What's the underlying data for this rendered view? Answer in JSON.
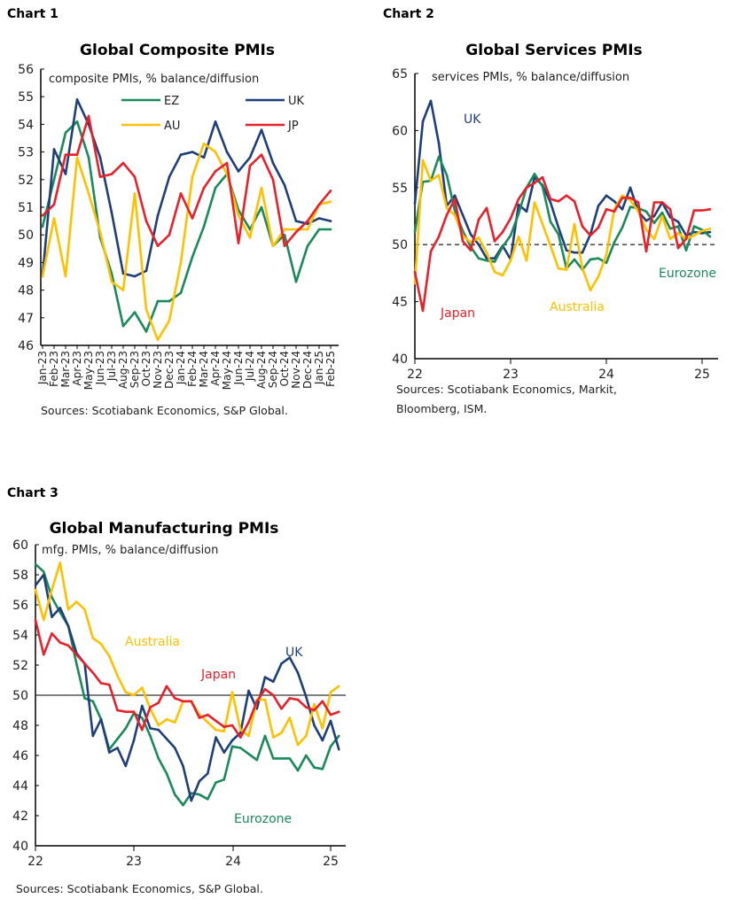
{
  "colors": {
    "EZ": "#1a8a5a",
    "UK": "#1f3f7a",
    "AU": "#ffc000",
    "JP": "#e8202a",
    "ref": "#333333"
  },
  "chart_data": [
    {
      "id": "chart1",
      "chart_label": "Chart 1",
      "type": "line",
      "title": "Global Composite PMIs",
      "subtitle": "composite PMIs, % balance/diffusion",
      "source": "Sources: Scotiabank Economics, S&P Global.",
      "ylim": [
        46,
        56
      ],
      "yticks": [
        46,
        47,
        48,
        49,
        50,
        51,
        52,
        53,
        54,
        55,
        56
      ],
      "categories": [
        "Jan-23",
        "Feb-23",
        "Mar-23",
        "Apr-23",
        "May-23",
        "Jun-23",
        "Jul-23",
        "Aug-23",
        "Sep-23",
        "Oct-23",
        "Nov-23",
        "Dec-23",
        "Jan-24",
        "Feb-24",
        "Mar-24",
        "Apr-24",
        "May-24",
        "Jun-24",
        "Jul-24",
        "Aug-24",
        "Sep-24",
        "Oct-24",
        "Nov-24",
        "Dec-24",
        "Jan-25",
        "Feb-25"
      ],
      "legend": "top-right, inside",
      "series": [
        {
          "key": "EZ",
          "name": "EZ",
          "values": [
            50.3,
            52.0,
            53.7,
            54.1,
            52.8,
            49.9,
            48.6,
            46.7,
            47.2,
            46.5,
            47.6,
            47.6,
            47.9,
            49.2,
            50.3,
            51.7,
            52.2,
            50.9,
            50.2,
            51.0,
            49.6,
            50.0,
            48.3,
            49.6,
            50.2,
            50.2
          ]
        },
        {
          "key": "UK",
          "name": "UK",
          "values": [
            48.5,
            53.1,
            52.2,
            54.9,
            54.0,
            52.8,
            50.8,
            48.6,
            48.5,
            48.7,
            50.7,
            52.1,
            52.9,
            53.0,
            52.8,
            54.1,
            53.0,
            52.3,
            52.8,
            53.8,
            52.6,
            51.8,
            50.5,
            50.4,
            50.6,
            50.5
          ]
        },
        {
          "key": "AU",
          "name": "AU",
          "values": [
            48.5,
            50.6,
            48.5,
            52.8,
            51.5,
            50.1,
            48.3,
            48.0,
            51.5,
            47.3,
            46.2,
            46.9,
            49.0,
            52.1,
            53.3,
            53.0,
            52.2,
            50.7,
            49.9,
            51.7,
            49.6,
            50.2,
            50.2,
            50.2,
            51.1,
            51.2
          ]
        },
        {
          "key": "JP",
          "name": "JP",
          "values": [
            50.7,
            51.1,
            52.9,
            52.9,
            54.3,
            52.1,
            52.2,
            52.6,
            52.1,
            50.5,
            49.6,
            50.0,
            51.5,
            50.6,
            51.7,
            52.3,
            52.6,
            49.7,
            52.5,
            52.9,
            52.0,
            49.6,
            50.1,
            50.5,
            51.1,
            51.6
          ]
        }
      ]
    },
    {
      "id": "chart2",
      "chart_label": "Chart 2",
      "type": "line",
      "title": "Global Services PMIs",
      "subtitle": "services PMIs, % balance/diffusion",
      "source_lines": [
        "Sources: Scotiabank Economics, Markit,",
        "Bloomberg, ISM."
      ],
      "ylim": [
        40,
        65
      ],
      "yticks": [
        40,
        45,
        50,
        55,
        60,
        65
      ],
      "xticks": [
        "22",
        "23",
        "24",
        "25"
      ],
      "x_range": "Jan-22 to Feb-25, monthly",
      "reference_line": 50,
      "series": [
        {
          "key": "UK",
          "name": "UK",
          "values": [
            53.6,
            60.8,
            62.6,
            58.9,
            53.4,
            54.3,
            52.6,
            50.9,
            50.0,
            48.8,
            48.8,
            49.9,
            48.7,
            53.5,
            52.9,
            55.9,
            55.2,
            53.7,
            51.5,
            49.5,
            49.3,
            49.3,
            50.9,
            53.4,
            54.3,
            53.8,
            53.1,
            55.0,
            52.9,
            52.1,
            52.5,
            53.7,
            52.4,
            52.0,
            50.8,
            51.1,
            51.0,
            51.1
          ]
        },
        {
          "key": "EZ",
          "name": "Eurozone",
          "values": [
            51.1,
            55.5,
            55.6,
            57.7,
            56.1,
            53.0,
            51.2,
            49.8,
            48.8,
            48.6,
            48.5,
            49.8,
            50.8,
            52.7,
            55.0,
            56.2,
            55.1,
            52.0,
            50.9,
            47.9,
            48.7,
            47.8,
            48.7,
            48.8,
            48.4,
            50.2,
            51.5,
            53.3,
            53.2,
            52.9,
            51.9,
            52.8,
            51.4,
            51.6,
            49.5,
            51.6,
            51.3,
            50.7
          ]
        },
        {
          "key": "AU",
          "name": "Australia",
          "values": [
            46.6,
            57.4,
            55.6,
            56.1,
            53.2,
            52.6,
            50.8,
            50.2,
            50.6,
            49.3,
            47.6,
            47.3,
            48.6,
            50.7,
            48.6,
            53.7,
            51.8,
            49.9,
            47.9,
            47.8,
            51.8,
            47.9,
            46.0,
            47.2,
            49.1,
            53.1,
            54.3,
            53.9,
            52.9,
            51.3,
            50.5,
            52.5,
            50.5,
            51.0,
            50.5,
            50.8,
            51.2,
            51.4
          ]
        },
        {
          "key": "JP",
          "name": "Japan",
          "values": [
            47.6,
            44.2,
            49.4,
            50.7,
            52.6,
            54.0,
            50.3,
            49.5,
            52.2,
            53.2,
            50.3,
            51.1,
            52.3,
            54.0,
            55.0,
            55.4,
            55.9,
            54.0,
            53.8,
            54.3,
            53.8,
            51.6,
            50.8,
            51.5,
            53.1,
            52.9,
            54.1,
            54.1,
            53.7,
            49.4,
            53.7,
            53.7,
            53.1,
            49.7,
            50.5,
            53.0,
            53.0,
            53.1
          ]
        }
      ]
    },
    {
      "id": "chart3",
      "chart_label": "Chart 3",
      "type": "line",
      "title": "Global Manufacturing PMIs",
      "subtitle": "mfg. PMIs, % balance/diffusion",
      "source": "Sources: Scotiabank Economics, S&P Global.",
      "ylim": [
        40,
        60
      ],
      "yticks": [
        40,
        42,
        44,
        46,
        48,
        50,
        52,
        54,
        56,
        58,
        60
      ],
      "xticks": [
        "22",
        "23",
        "24",
        "25"
      ],
      "x_range": "Jan-22 to Feb-25, monthly",
      "reference_line": 50,
      "series": [
        {
          "key": "EZ",
          "name": "Eurozone",
          "values": [
            58.7,
            58.2,
            56.5,
            55.5,
            54.6,
            52.1,
            49.8,
            49.6,
            48.4,
            46.4,
            47.1,
            47.8,
            48.8,
            48.5,
            47.3,
            45.8,
            44.8,
            43.4,
            42.7,
            43.5,
            43.4,
            43.1,
            44.2,
            44.4,
            46.6,
            46.5,
            46.1,
            45.7,
            47.3,
            45.8,
            45.8,
            45.8,
            45.0,
            46.0,
            45.2,
            45.1,
            46.6,
            47.3
          ]
        },
        {
          "key": "UK",
          "name": "UK",
          "values": [
            57.3,
            58.0,
            55.2,
            55.8,
            54.6,
            52.8,
            52.1,
            47.3,
            48.4,
            46.2,
            46.5,
            45.3,
            47.0,
            49.3,
            47.8,
            47.7,
            47.1,
            46.5,
            45.3,
            43.0,
            44.3,
            44.8,
            47.2,
            46.2,
            47.0,
            47.5,
            50.3,
            49.1,
            51.2,
            50.9,
            52.1,
            52.5,
            51.5,
            49.9,
            48.0,
            47.0,
            48.3,
            46.4
          ]
        },
        {
          "key": "AU",
          "name": "Australia",
          "values": [
            57.0,
            55.0,
            57.0,
            58.8,
            55.7,
            56.2,
            55.7,
            53.8,
            53.4,
            52.6,
            51.3,
            50.2,
            50.0,
            50.5,
            49.1,
            48.0,
            48.4,
            48.2,
            49.6,
            49.6,
            48.7,
            48.2,
            47.7,
            47.6,
            50.2,
            47.7,
            47.3,
            49.7,
            49.7,
            47.2,
            47.5,
            48.5,
            46.7,
            47.3,
            49.4,
            47.8,
            50.2,
            50.6
          ]
        },
        {
          "key": "JP",
          "name": "Japan",
          "values": [
            55.0,
            52.7,
            54.1,
            53.5,
            53.3,
            52.7,
            52.1,
            51.5,
            50.8,
            50.7,
            49.0,
            48.9,
            48.9,
            47.7,
            49.2,
            49.5,
            50.6,
            49.8,
            49.6,
            49.6,
            48.5,
            48.7,
            48.3,
            47.9,
            48.0,
            47.2,
            48.2,
            49.6,
            50.4,
            50.0,
            49.1,
            49.8,
            49.7,
            49.2,
            49.0,
            49.6,
            48.7,
            48.9
          ]
        }
      ]
    }
  ]
}
